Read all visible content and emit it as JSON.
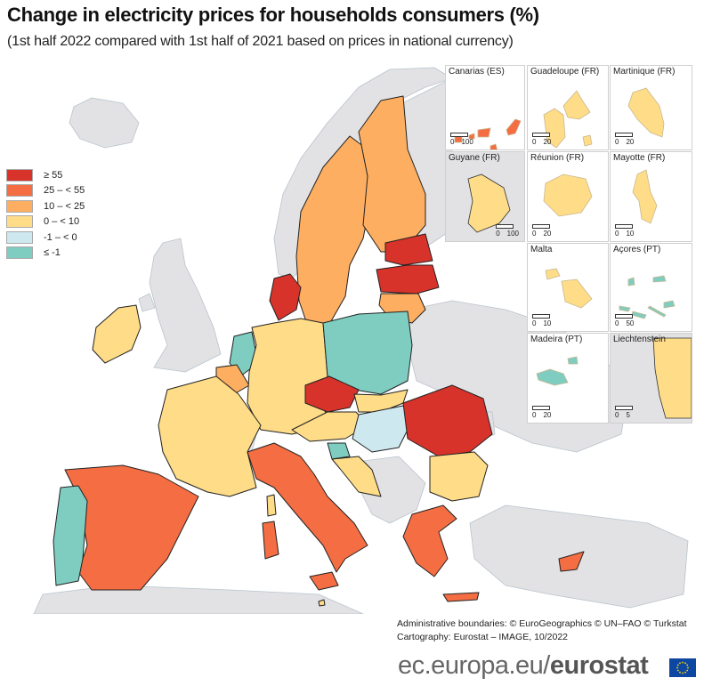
{
  "header": {
    "title": "Change in electricity prices for households consumers (%)",
    "subtitle": "(1st half 2022 compared with 1st half of 2021 based on prices in national currency)"
  },
  "legend": {
    "items": [
      {
        "label": "≥ 55",
        "color": "#d7332b",
        "category": "ge55"
      },
      {
        "label": "25 – < 55",
        "color": "#f46d43",
        "category": "25to55"
      },
      {
        "label": "10 – < 25",
        "color": "#fdae61",
        "category": "10to25"
      },
      {
        "label": "0 – < 10",
        "color": "#fedc88",
        "category": "0to10"
      },
      {
        "label": "-1 – < 0",
        "color": "#cde8ee",
        "category": "m1to0"
      },
      {
        "label": "≤ -1",
        "color": "#7ecdc0",
        "category": "lem1"
      }
    ]
  },
  "colors": {
    "non_eu": "#e2e2e4",
    "sea": "#ffffff",
    "border": "#222222"
  },
  "chart_data": {
    "type": "choropleth",
    "title": "Change in electricity prices for households consumers (%)",
    "subtitle": "(1st half 2022 compared with 1st half of 2021 based on prices in national currency)",
    "legend_placement": "left",
    "classes": [
      "≥ 55",
      "25 – < 55",
      "10 – < 25",
      "0 – < 10",
      "-1 – < 0",
      "≤ -1"
    ],
    "regions": [
      {
        "name": "Denmark",
        "class": "≥ 55"
      },
      {
        "name": "Estonia",
        "class": "≥ 55"
      },
      {
        "name": "Latvia",
        "class": "≥ 55"
      },
      {
        "name": "Czechia",
        "class": "≥ 55"
      },
      {
        "name": "Romania",
        "class": "≥ 55"
      },
      {
        "name": "Spain",
        "class": "25 – < 55"
      },
      {
        "name": "Italy",
        "class": "25 – < 55"
      },
      {
        "name": "Greece",
        "class": "25 – < 55"
      },
      {
        "name": "Cyprus",
        "class": "25 – < 55"
      },
      {
        "name": "Canarias (ES)",
        "class": "25 – < 55"
      },
      {
        "name": "Sweden",
        "class": "10 – < 25"
      },
      {
        "name": "Finland",
        "class": "10 – < 25"
      },
      {
        "name": "Lithuania",
        "class": "10 – < 25"
      },
      {
        "name": "Belgium",
        "class": "10 – < 25"
      },
      {
        "name": "Ireland",
        "class": "0 – < 10"
      },
      {
        "name": "France",
        "class": "0 – < 10"
      },
      {
        "name": "Germany",
        "class": "0 – < 10"
      },
      {
        "name": "Austria",
        "class": "0 – < 10"
      },
      {
        "name": "Slovakia",
        "class": "0 – < 10"
      },
      {
        "name": "Croatia",
        "class": "0 – < 10"
      },
      {
        "name": "Bulgaria",
        "class": "0 – < 10"
      },
      {
        "name": "Malta",
        "class": "0 – < 10"
      },
      {
        "name": "Liechtenstein",
        "class": "0 – < 10"
      },
      {
        "name": "Guadeloupe (FR)",
        "class": "0 – < 10"
      },
      {
        "name": "Martinique (FR)",
        "class": "0 – < 10"
      },
      {
        "name": "Guyane (FR)",
        "class": "0 – < 10"
      },
      {
        "name": "Réunion (FR)",
        "class": "0 – < 10"
      },
      {
        "name": "Mayotte (FR)",
        "class": "0 – < 10"
      },
      {
        "name": "Hungary",
        "class": "-1 – < 0"
      },
      {
        "name": "Netherlands",
        "class": "≤ -1"
      },
      {
        "name": "Poland",
        "class": "≤ -1"
      },
      {
        "name": "Slovenia",
        "class": "≤ -1"
      },
      {
        "name": "Portugal",
        "class": "≤ -1"
      },
      {
        "name": "Açores (PT)",
        "class": "≤ -1"
      },
      {
        "name": "Madeira (PT)",
        "class": "≤ -1"
      }
    ]
  },
  "insets": [
    {
      "label": "Canarias (ES)",
      "scale": [
        "0",
        "100"
      ]
    },
    {
      "label": "Guadeloupe (FR)",
      "scale": [
        "0",
        "20"
      ]
    },
    {
      "label": "Martinique (FR)",
      "scale": [
        "0",
        "20"
      ]
    },
    {
      "label": "Guyane (FR)",
      "scale": [
        "0",
        "100"
      ]
    },
    {
      "label": "Réunion (FR)",
      "scale": [
        "0",
        "20"
      ]
    },
    {
      "label": "Mayotte (FR)",
      "scale": [
        "0",
        "10"
      ]
    },
    {
      "label": "Malta",
      "scale": [
        "0",
        "10"
      ]
    },
    {
      "label": "Açores (PT)",
      "scale": [
        "0",
        "50"
      ]
    },
    {
      "label": "Madeira (PT)",
      "scale": [
        "0",
        "20"
      ]
    },
    {
      "label": "Liechtenstein",
      "scale": [
        "0",
        "5"
      ]
    }
  ],
  "credits": {
    "line1": "Administrative boundaries: © EuroGeographics © UN–FAO © Turkstat",
    "line2": "Cartography: Eurostat – IMAGE, 10/2022"
  },
  "footer": {
    "prefix": "ec.europa.eu/",
    "brand": "eurostat",
    "flag_icon": "eu-flag-icon"
  }
}
